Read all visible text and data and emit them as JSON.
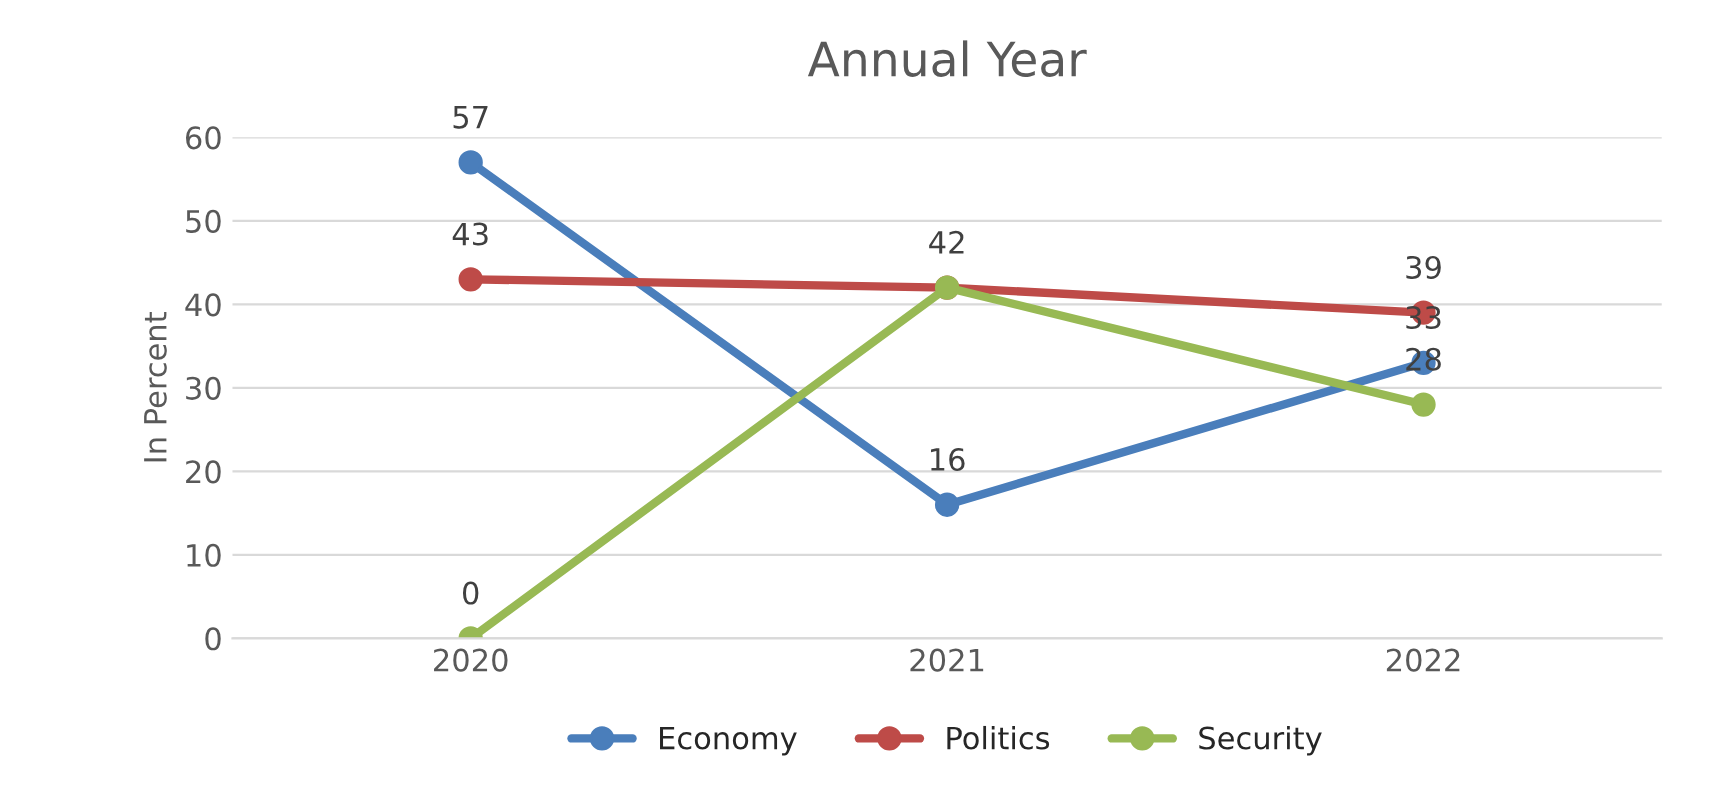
{
  "chart_data": {
    "type": "line",
    "title": "Annual Year",
    "ylabel": "In Percent",
    "categories": [
      "2020",
      "2021",
      "2022"
    ],
    "series": [
      {
        "name": "Economy",
        "color": "#4a7ebb",
        "values": [
          57,
          16,
          33
        ]
      },
      {
        "name": "Politics",
        "color": "#be4b48",
        "values": [
          43,
          42,
          39
        ]
      },
      {
        "name": "Security",
        "color": "#98b954",
        "values": [
          0,
          42,
          28
        ],
        "value_labels": [
          "0",
          null,
          "28"
        ]
      }
    ],
    "ylim": [
      0,
      60
    ],
    "yticks": [
      0,
      10,
      20,
      30,
      40,
      50,
      60
    ],
    "grid": "y",
    "legend": "bottom",
    "marker": "circle",
    "line_style": "solid",
    "data_labels": true
  }
}
